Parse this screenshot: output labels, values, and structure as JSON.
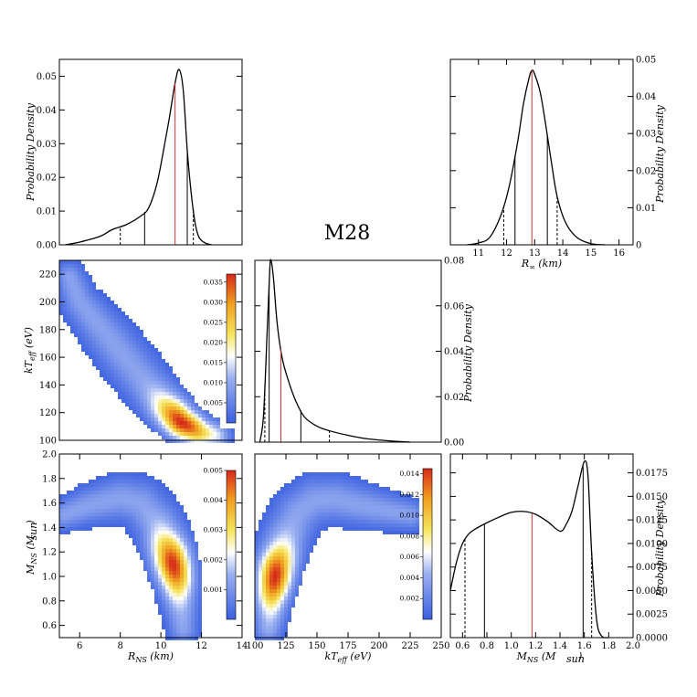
{
  "title": "M28",
  "colors": {
    "curve": "#000000",
    "median": "#d03030",
    "cmap": [
      "#3a5fe0",
      "#9ab0f0",
      "#ffffff",
      "#f5e35a",
      "#f0a020",
      "#d62a1a"
    ]
  },
  "chart_data": [
    {
      "id": "p_r",
      "type": "line",
      "ylabel": "Probability Density",
      "xlim": [
        5,
        14
      ],
      "ylim": [
        0,
        0.055
      ],
      "xticks": [],
      "yticks": [
        "0.00",
        "0.01",
        "0.02",
        "0.03",
        "0.04",
        "0.05"
      ],
      "ytick_values": [
        0,
        0.01,
        0.02,
        0.03,
        0.04,
        0.05
      ],
      "x": [
        5.3,
        6,
        7,
        7.6,
        8.3,
        9,
        9.4,
        9.8,
        10.1,
        10.4,
        10.7,
        10.9,
        11.1,
        11.3,
        11.5,
        11.7,
        11.9,
        12.2,
        12.5
      ],
      "y": [
        0,
        0.0008,
        0.0025,
        0.0045,
        0.006,
        0.0085,
        0.011,
        0.018,
        0.027,
        0.037,
        0.048,
        0.052,
        0.046,
        0.028,
        0.015,
        0.006,
        0.002,
        0.0005,
        0
      ],
      "median": 10.7,
      "ci68": [
        9.2,
        11.3
      ],
      "ci95": [
        8.0,
        11.6
      ]
    },
    {
      "id": "p_rinf",
      "type": "line",
      "ylabel": "Probability Density",
      "xlabel": "R∞ (km)",
      "xlim": [
        10,
        16.5
      ],
      "ylim": [
        0,
        0.05
      ],
      "xticks": [
        "11",
        "12",
        "13",
        "14",
        "15",
        "16"
      ],
      "xtick_values": [
        11,
        12,
        13,
        14,
        15,
        16
      ],
      "yticks": [
        "0",
        "0.01",
        "0.02",
        "0.03",
        "0.04",
        "0.05"
      ],
      "ytick_values": [
        0,
        0.01,
        0.02,
        0.03,
        0.04,
        0.05
      ],
      "x": [
        10.6,
        11,
        11.4,
        11.8,
        12.1,
        12.4,
        12.6,
        12.8,
        12.9,
        13.0,
        13.2,
        13.4,
        13.6,
        13.8,
        14.1,
        14.5,
        15,
        15.5
      ],
      "y": [
        0,
        0.0005,
        0.002,
        0.008,
        0.016,
        0.028,
        0.038,
        0.045,
        0.047,
        0.046,
        0.041,
        0.032,
        0.022,
        0.013,
        0.006,
        0.002,
        0.0003,
        0
      ],
      "median": 12.9,
      "ci68": [
        12.3,
        13.45
      ],
      "ci95": [
        11.9,
        13.8
      ]
    },
    {
      "id": "p_kt",
      "type": "line",
      "ylabel": "Probability Density",
      "xlim": [
        100,
        250
      ],
      "ylim": [
        0,
        0.08
      ],
      "xticks": [],
      "yticks": [
        "0.00",
        "0.02",
        "0.04",
        "0.06",
        "0.08"
      ],
      "ytick_values": [
        0,
        0.02,
        0.04,
        0.06,
        0.08
      ],
      "x": [
        104,
        107,
        110,
        112,
        113,
        115,
        118,
        122,
        127,
        133,
        140,
        150,
        160,
        175,
        190,
        210,
        225
      ],
      "y": [
        0,
        0.012,
        0.05,
        0.076,
        0.08,
        0.072,
        0.052,
        0.037,
        0.027,
        0.018,
        0.011,
        0.007,
        0.005,
        0.003,
        0.0015,
        0.0005,
        0
      ],
      "median": 121,
      "ci68": [
        111.5,
        137
      ],
      "ci95": [
        108,
        160
      ]
    },
    {
      "id": "p_m",
      "type": "line",
      "ylabel": "Probability Density",
      "xlabel": "MNS (Msun)",
      "xlim": [
        0.5,
        2.0
      ],
      "ylim": [
        0,
        0.0195
      ],
      "xticks": [
        "0.6",
        "0.8",
        "1.0",
        "1.2",
        "1.4",
        "1.6",
        "1.8",
        "2.0"
      ],
      "xtick_values": [
        0.6,
        0.8,
        1.0,
        1.2,
        1.4,
        1.6,
        1.8,
        2.0
      ],
      "yticks": [
        "0.0000",
        "0.0025",
        "0.0050",
        "0.0075",
        "0.0100",
        "0.0125",
        "0.0150",
        "0.0175"
      ],
      "ytick_values": [
        0,
        0.0025,
        0.005,
        0.0075,
        0.01,
        0.0125,
        0.015,
        0.0175
      ],
      "x": [
        0.5,
        0.55,
        0.6,
        0.65,
        0.7,
        0.8,
        0.9,
        1.0,
        1.1,
        1.2,
        1.3,
        1.4,
        1.45,
        1.5,
        1.55,
        1.6,
        1.63,
        1.66,
        1.7,
        1.74,
        1.8
      ],
      "y": [
        0.005,
        0.008,
        0.01,
        0.011,
        0.0115,
        0.0122,
        0.0128,
        0.0133,
        0.0134,
        0.0131,
        0.0123,
        0.0113,
        0.012,
        0.0135,
        0.0162,
        0.0187,
        0.0172,
        0.009,
        0.002,
        0.0002,
        0
      ],
      "median": 1.17,
      "ci68": [
        0.78,
        1.59
      ],
      "ci95": [
        0.62,
        1.66
      ]
    },
    {
      "id": "h_kt_r",
      "type": "heatmap",
      "xlabel": "",
      "ylabel": "kTeff (eV)",
      "xlim": [
        5,
        14
      ],
      "ylim": [
        100,
        230
      ],
      "yticks": [
        "100",
        "120",
        "140",
        "160",
        "180",
        "200",
        "220"
      ],
      "ytick_values": [
        100,
        120,
        140,
        160,
        180,
        200,
        220
      ],
      "ridge_x": [
        5.5,
        6,
        7,
        8,
        9,
        10,
        11,
        12,
        12.8
      ],
      "ridge_y": [
        218,
        200,
        182,
        164,
        146,
        128,
        113,
        105,
        103
      ],
      "peak": [
        11.0,
        112
      ],
      "colorbar": {
        "max": 0.037,
        "ticks": [
          "0.005",
          "0.010",
          "0.015",
          "0.020",
          "0.025",
          "0.030",
          "0.035"
        ],
        "tick_values": [
          0.005,
          0.01,
          0.015,
          0.02,
          0.025,
          0.03,
          0.035
        ]
      }
    },
    {
      "id": "h_m_r",
      "type": "heatmap",
      "xlabel": "RNS (km)",
      "ylabel": "MNS (Msun)",
      "xlim": [
        5,
        14
      ],
      "ylim": [
        0.5,
        2.0
      ],
      "xticks": [
        "6",
        "8",
        "10",
        "12",
        "14"
      ],
      "xtick_values": [
        6,
        8,
        10,
        12,
        14
      ],
      "yticks": [
        "0.6",
        "0.8",
        "1.0",
        "1.2",
        "1.4",
        "1.6",
        "1.8",
        "2.0"
      ],
      "ytick_values": [
        0.6,
        0.8,
        1.0,
        1.2,
        1.4,
        1.6,
        1.8,
        2.0
      ],
      "ridge_x": [
        5.2,
        6.5,
        8,
        9,
        9.8,
        10.4,
        10.8,
        11.0,
        11.1
      ],
      "ridge_y": [
        1.5,
        1.58,
        1.64,
        1.6,
        1.45,
        1.2,
        0.95,
        0.72,
        0.57
      ],
      "peak": [
        10.7,
        1.1
      ],
      "colorbar": {
        "max": 0.005,
        "ticks": [
          "0.001",
          "0.002",
          "0.003",
          "0.004",
          "0.005"
        ],
        "tick_values": [
          0.001,
          0.002,
          0.003,
          0.004,
          0.005
        ]
      }
    },
    {
      "id": "h_m_kt",
      "type": "heatmap",
      "xlabel": "kTeff (eV)",
      "ylabel": "",
      "xlim": [
        100,
        250
      ],
      "ylim": [
        0.5,
        2.0
      ],
      "xticks": [
        "100",
        "125",
        "150",
        "175",
        "200",
        "225",
        "250"
      ],
      "xtick_values": [
        100,
        125,
        150,
        175,
        200,
        225,
        250
      ],
      "ridge_x": [
        111,
        113,
        118,
        126,
        135,
        148,
        165,
        185,
        210,
        225
      ],
      "ridge_y": [
        0.57,
        0.8,
        1.1,
        1.35,
        1.52,
        1.62,
        1.63,
        1.58,
        1.53,
        1.5
      ],
      "peak": [
        116,
        1.0
      ],
      "colorbar": {
        "max": 0.0145,
        "ticks": [
          "0.002",
          "0.004",
          "0.006",
          "0.008",
          "0.010",
          "0.012",
          "0.014"
        ],
        "tick_values": [
          0.002,
          0.004,
          0.006,
          0.008,
          0.01,
          0.012,
          0.014
        ]
      }
    }
  ]
}
